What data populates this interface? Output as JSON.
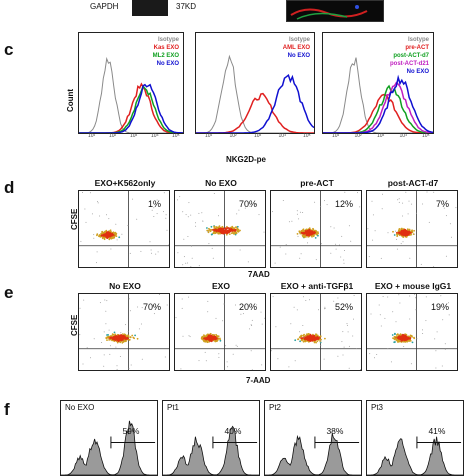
{
  "panel_top": {
    "gapdh": "GAPDH",
    "size": "37KD"
  },
  "panel_c": {
    "letter": "c",
    "ylabel": "Count",
    "xlabel": "NKG2D-pe",
    "plots": [
      {
        "legend": [
          {
            "text": "Isotype",
            "color": "#8a8a8a"
          },
          {
            "text": "Kas EXO",
            "color": "#e02020"
          },
          {
            "text": "ML2 EXO",
            "color": "#10a020"
          },
          {
            "text": "No EXO",
            "color": "#1010d0"
          }
        ]
      },
      {
        "legend": [
          {
            "text": "Isotype",
            "color": "#8a8a8a"
          },
          {
            "text": "AML EXO",
            "color": "#e02020"
          },
          {
            "text": "No EXO",
            "color": "#1010d0"
          }
        ]
      },
      {
        "legend": [
          {
            "text": "Isotype",
            "color": "#8a8a8a"
          },
          {
            "text": "pre-ACT",
            "color": "#e02020"
          },
          {
            "text": "post-ACT-d7",
            "color": "#10a020"
          },
          {
            "text": "post-ACT-d21",
            "color": "#c020c0"
          },
          {
            "text": "No EXO",
            "color": "#1010d0"
          }
        ]
      }
    ],
    "ticks": [
      "10¹",
      "10²",
      "10³",
      "10⁴",
      "10⁵"
    ]
  },
  "panel_d": {
    "letter": "d",
    "ylabel": "CFSE",
    "xlabel": "7AAD",
    "plots": [
      {
        "title": "EXO+K562only",
        "pct": "1%"
      },
      {
        "title": "No EXO",
        "pct": "70%"
      },
      {
        "title": "pre-ACT",
        "pct": "12%"
      },
      {
        "title": "post-ACT-d7",
        "pct": "7%"
      }
    ]
  },
  "panel_e": {
    "letter": "e",
    "ylabel": "CFSE",
    "xlabel": "7-AAD",
    "plots": [
      {
        "title": "No EXO",
        "pct": "70%"
      },
      {
        "title": "EXO",
        "pct": "20%"
      },
      {
        "title": "EXO + anti-TGFβ1",
        "pct": "52%"
      },
      {
        "title": "EXO + mouse IgG1",
        "pct": "19%"
      }
    ]
  },
  "panel_f": {
    "letter": "f",
    "plots": [
      {
        "title": "No EXO",
        "pct": "59%"
      },
      {
        "title": "Pt1",
        "pct": "40%"
      },
      {
        "title": "Pt2",
        "pct": "38%"
      },
      {
        "title": "Pt3",
        "pct": "41%"
      }
    ]
  },
  "colors": {
    "red": "#e02020",
    "green": "#10a020",
    "blue": "#1010d0",
    "magenta": "#c020c0",
    "grey": "#8a8a8a",
    "dot_teal": "#2aa0a0",
    "dot_core": "#e03010"
  }
}
